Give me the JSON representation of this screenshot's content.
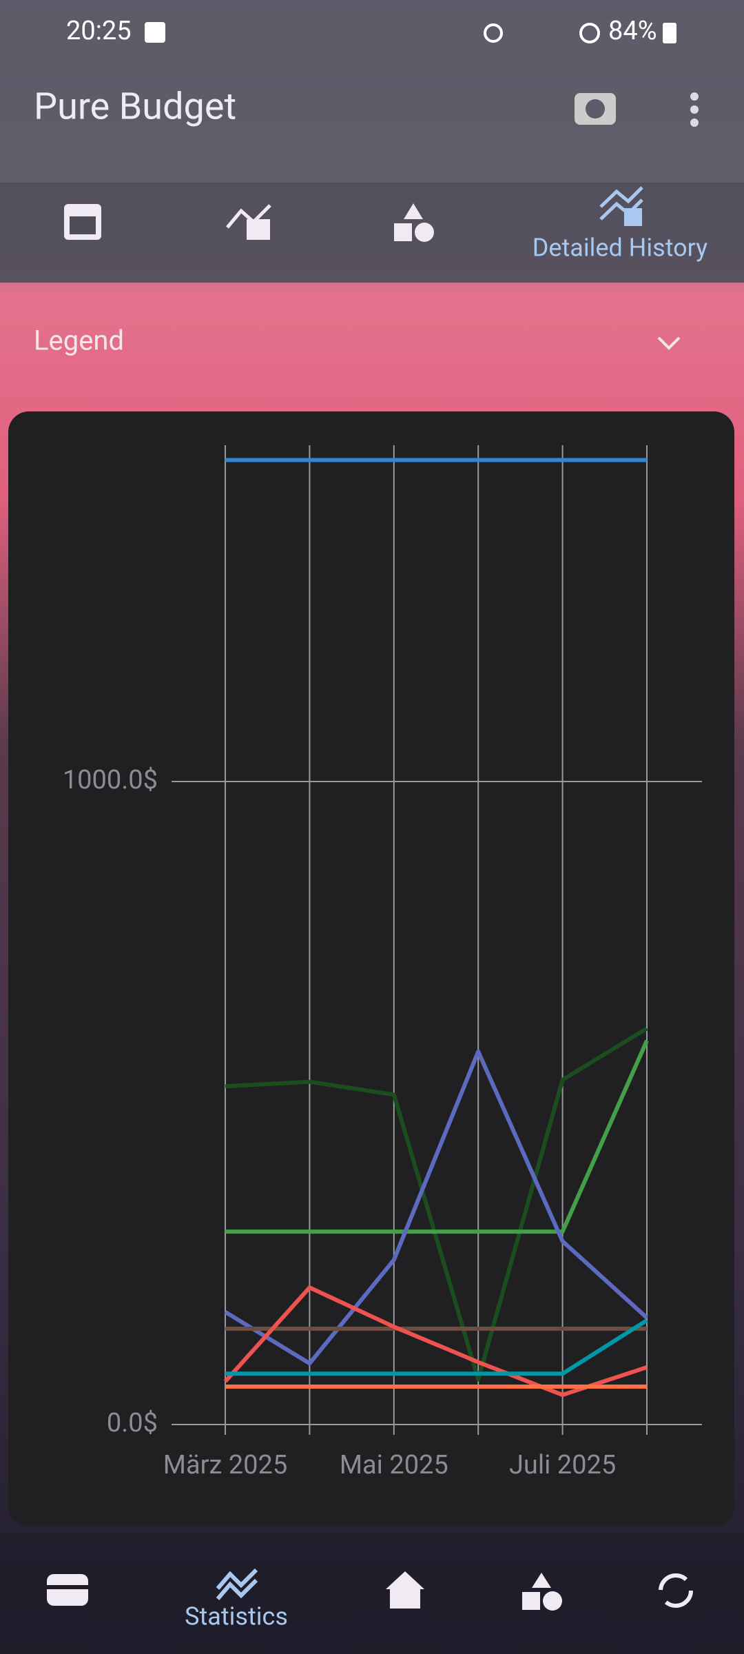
{
  "status": {
    "time": "20:25",
    "battery": "84%"
  },
  "app_bar": {
    "title": "Pure Budget"
  },
  "tabs": {
    "active_label": "Detailed History"
  },
  "legend": {
    "label": "Legend"
  },
  "nav": {
    "active_label": "Statistics"
  },
  "chart_data": {
    "type": "line",
    "categories": [
      "März 2025",
      null,
      "Mai 2025",
      null,
      "Juli 2025",
      null
    ],
    "ylim": [
      0,
      1523
    ],
    "yticks": [
      {
        "value": 0,
        "label": "0.0$"
      },
      {
        "value": 1000,
        "label": "1000.0$"
      }
    ],
    "grid": true,
    "series": [
      {
        "color": "#2f86d8",
        "values": [
          1500,
          1500,
          1500,
          1500,
          1500,
          1500
        ]
      },
      {
        "color": "#1b4d1f",
        "values": [
          526,
          533,
          513,
          70,
          536,
          616
        ]
      },
      {
        "color": "#43a047",
        "values": [
          300,
          300,
          300,
          300,
          300,
          597
        ]
      },
      {
        "color": "#5c6bc0",
        "values": [
          175,
          95,
          256,
          580,
          285,
          166
        ]
      },
      {
        "color": "#6d4c41",
        "values": [
          149,
          149,
          149,
          149,
          149,
          149
        ]
      },
      {
        "color": "#ef5350",
        "values": [
          67,
          213,
          152,
          97,
          46,
          89
        ]
      },
      {
        "color": "#ff7043",
        "values": [
          59,
          59,
          59,
          59,
          59,
          59
        ]
      },
      {
        "color": "#0097a7",
        "values": [
          79,
          79,
          79,
          79,
          79,
          162
        ]
      }
    ]
  }
}
